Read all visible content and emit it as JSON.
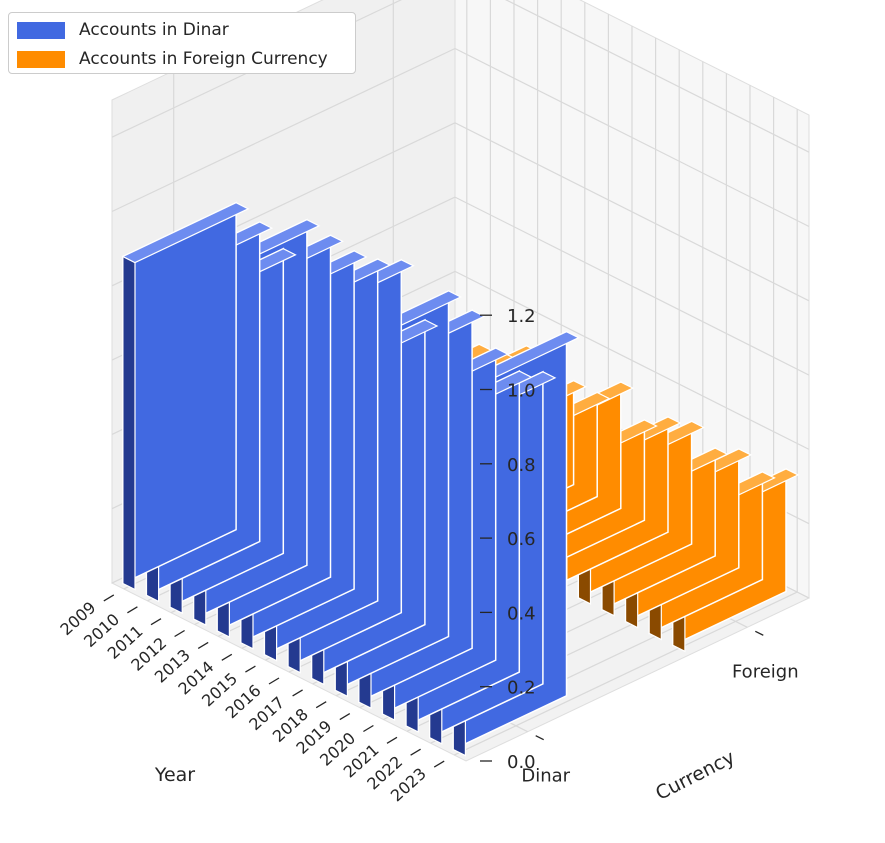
{
  "chart_data": {
    "type": "bar",
    "title": "",
    "xlabel": "Year",
    "ylabel": "Currency",
    "zlim": [
      0,
      1.3
    ],
    "z_ticks": [
      "0.0",
      "0.2",
      "0.4",
      "0.6",
      "0.8",
      "1.0",
      "1.2"
    ],
    "categories": [
      "2009",
      "2010",
      "2011",
      "2012",
      "2013",
      "2014",
      "2015",
      "2016",
      "2017",
      "2018",
      "2019",
      "2020",
      "2021",
      "2022",
      "2023"
    ],
    "y_categories": [
      "Dinar",
      "Foreign"
    ],
    "grid": true,
    "legend_position": "top-left",
    "series": [
      {
        "name": "Accounts in Dinar",
        "color": "#4169e1",
        "values": [
          0.88,
          0.86,
          0.82,
          0.93,
          0.92,
          0.91,
          0.92,
          0.95,
          0.82,
          0.93,
          0.91,
          0.84,
          0.81,
          0.84,
          0.98
        ]
      },
      {
        "name": "Accounts in Foreign Currency",
        "color": "#ff8c00",
        "values": [
          0.23,
          0.25,
          0.26,
          0.31,
          0.29,
          0.28,
          0.28,
          0.34,
          0.27,
          0.31,
          0.33,
          0.29,
          0.32,
          0.29,
          0.33
        ]
      }
    ]
  }
}
